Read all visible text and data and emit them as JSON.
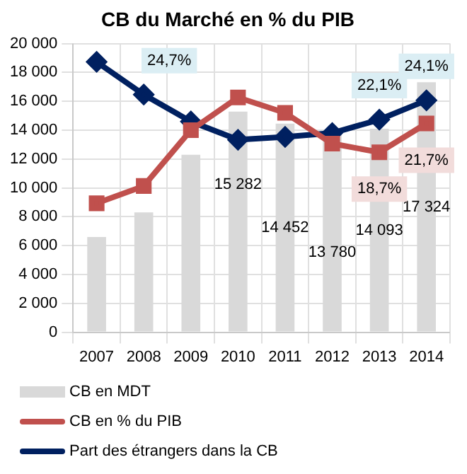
{
  "chart_data": {
    "type": "bar",
    "title": "CB du Marché en % du PIB",
    "categories": [
      "2007",
      "2008",
      "2009",
      "2010",
      "2011",
      "2012",
      "2013",
      "2014"
    ],
    "series": [
      {
        "name": "CB en MDT",
        "color": "#d9d9d9",
        "values": [
          6600,
          8300,
          12300,
          15282,
          14452,
          13780,
          14093,
          17324
        ],
        "value_labels": [
          null,
          null,
          null,
          "15 282",
          "14 452",
          "13 780",
          "14 093",
          "17 324"
        ]
      },
      {
        "name": "CB en % du PIB",
        "type": "line",
        "axis": "y2",
        "color": "#c0504d",
        "marker": "square",
        "values": [
          13.4,
          15.2,
          21.0,
          24.4,
          22.8,
          19.6,
          18.7,
          21.7
        ],
        "value_labels": [
          null,
          null,
          null,
          null,
          null,
          null,
          "18,7%",
          "21,7%"
        ]
      },
      {
        "name": "Part des étrangers dans la CB",
        "type": "line",
        "axis": "y2",
        "color": "#002060",
        "marker": "diamond",
        "values": [
          28.1,
          24.7,
          21.9,
          20.0,
          20.3,
          20.7,
          22.1,
          24.1
        ],
        "value_labels": [
          null,
          "24,7%",
          null,
          null,
          null,
          null,
          "22,1%",
          "24,1%"
        ]
      }
    ],
    "ylim": [
      0,
      20000
    ],
    "yticks": [
      {
        "value": 0,
        "label": "0"
      },
      {
        "value": 2000,
        "label": "2 000"
      },
      {
        "value": 4000,
        "label": "4 000"
      },
      {
        "value": 6000,
        "label": "6 000"
      },
      {
        "value": 8000,
        "label": "8 000"
      },
      {
        "value": 10000,
        "label": "10 000"
      },
      {
        "value": 12000,
        "label": "12 000"
      },
      {
        "value": 14000,
        "label": "14 000"
      },
      {
        "value": 16000,
        "label": "16 000"
      },
      {
        "value": 18000,
        "label": "18 000"
      },
      {
        "value": 20000,
        "label": "20 000"
      }
    ],
    "y2lim": [
      0,
      30
    ],
    "tick_labels": "xy",
    "grid": true,
    "legend": "bottom"
  }
}
